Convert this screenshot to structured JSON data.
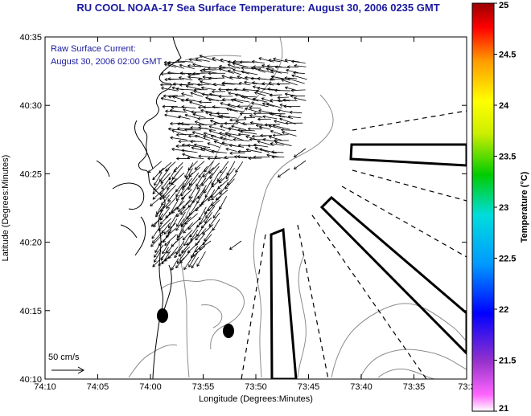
{
  "title": "RU COOL  NOAA-17  Sea Surface Temperature:  August 30, 2006 0235 GMT",
  "overlay": {
    "line1": "Raw Surface Current:",
    "line2": "August 30, 2006 02:00 GMT"
  },
  "scale_label": "50 cm/s",
  "axes": {
    "xlabel": "Longitude (Degrees:Minutes)",
    "ylabel": "Latitude (Degrees:Minutes)",
    "x_ticks": [
      "74:10",
      "74:05",
      "74:00",
      "73:55",
      "73:50",
      "73:45",
      "73:40",
      "73:35",
      "73:3"
    ],
    "y_ticks": [
      "40:35",
      "40:30",
      "40:25",
      "40:20",
      "40:15",
      "40:10"
    ]
  },
  "colorbar": {
    "label": "Temperature (°C)",
    "ticks": [
      "25",
      "24.5",
      "24",
      "23.5",
      "23",
      "22.5",
      "22",
      "21.5",
      "21"
    ],
    "range": [
      21,
      25
    ]
  },
  "colors": {
    "title": "#1a1aa0",
    "coast": "#000000",
    "bathymetry": "#8c8c8c"
  }
}
